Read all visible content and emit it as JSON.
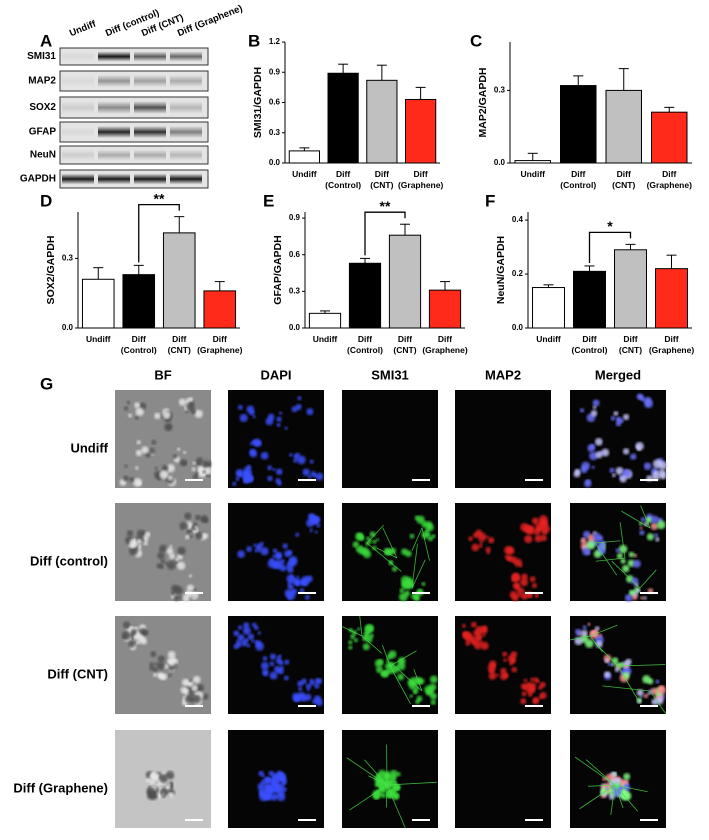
{
  "panel_labels": [
    "A",
    "B",
    "C",
    "D",
    "E",
    "F",
    "G"
  ],
  "blot": {
    "lanes": [
      "Undiff",
      "Diff (control)",
      "Diff (CNT)",
      "Diff (Graphene)"
    ],
    "rows": [
      "SMI31",
      "MAP2",
      "SOX2",
      "GFAP",
      "NeuN",
      "GAPDH"
    ]
  },
  "chart_data": [
    {
      "type": "bar",
      "ylabel": "SMI31/GAPDH",
      "categories": [
        "Undiff",
        "Diff (Control)",
        "Diff (CNT)",
        "Diff (Graphene)"
      ],
      "values": [
        0.12,
        0.89,
        0.82,
        0.63
      ],
      "errors": [
        0.03,
        0.09,
        0.15,
        0.12
      ],
      "colors": [
        "#ffffff",
        "#000000",
        "#c0c0c0",
        "#ff2a1a"
      ],
      "ylim": [
        0,
        1.2
      ],
      "yticks": [
        {
          "value": 0,
          "label": "0.0"
        },
        0.3,
        0.6,
        0.9,
        1.2
      ]
    },
    {
      "type": "bar",
      "ylabel": "MAP2/GAPDH",
      "categories": [
        "Undiff",
        "Diff (Control)",
        "Diff (CNT)",
        "Diff (Graphene)"
      ],
      "values": [
        0.01,
        0.32,
        0.3,
        0.21
      ],
      "errors": [
        0.03,
        0.04,
        0.09,
        0.02
      ],
      "colors": [
        "#ffffff",
        "#000000",
        "#c0c0c0",
        "#ff2a1a"
      ],
      "ylim": [
        0,
        0.5
      ],
      "yticks": [
        {
          "value": 0,
          "label": "0.0"
        },
        0.3
      ]
    },
    {
      "type": "bar",
      "ylabel": "SOX2/GAPDH",
      "categories": [
        "Undiff",
        "Diff (Control)",
        "Diff (CNT)",
        "Diff (Graphene)"
      ],
      "values": [
        0.21,
        0.23,
        0.41,
        0.16
      ],
      "errors": [
        0.05,
        0.04,
        0.07,
        0.04
      ],
      "colors": [
        "#ffffff",
        "#000000",
        "#c0c0c0",
        "#ff2a1a"
      ],
      "ylim": [
        0,
        0.5
      ],
      "yticks": [
        {
          "value": 0,
          "label": "0.0"
        },
        0.3
      ],
      "significance": [
        {
          "text": "**",
          "pair": [
            1,
            2
          ]
        }
      ]
    },
    {
      "type": "bar",
      "ylabel": "GFAP/GAPDH",
      "categories": [
        "Undiff",
        "Diff (Control)",
        "Diff (CNT)",
        "Diff (Graphene)"
      ],
      "values": [
        0.12,
        0.53,
        0.76,
        0.31
      ],
      "errors": [
        0.02,
        0.04,
        0.09,
        0.07
      ],
      "colors": [
        "#ffffff",
        "#000000",
        "#c0c0c0",
        "#ff2a1a"
      ],
      "ylim": [
        0,
        0.95
      ],
      "yticks": [
        {
          "value": 0,
          "label": "0.0"
        },
        0.3,
        0.6,
        0.9
      ],
      "significance": [
        {
          "text": "**",
          "pair": [
            1,
            2
          ]
        }
      ]
    },
    {
      "type": "bar",
      "ylabel": "NeuN/GAPDH",
      "categories": [
        "Undiff",
        "Diff (Control)",
        "Diff (CNT)",
        "Diff (Graphene)"
      ],
      "values": [
        0.15,
        0.21,
        0.29,
        0.22
      ],
      "errors": [
        0.01,
        0.02,
        0.02,
        0.05
      ],
      "colors": [
        "#ffffff",
        "#000000",
        "#c0c0c0",
        "#ff2a1a"
      ],
      "ylim": [
        0,
        0.43
      ],
      "yticks": [
        {
          "value": 0,
          "label": "0.0"
        },
        0.2,
        0.4
      ],
      "significance": [
        {
          "text": "*",
          "pair": [
            1,
            2
          ]
        }
      ]
    }
  ],
  "imaging": {
    "columns": [
      "BF",
      "DAPI",
      "SMI31",
      "MAP2",
      "Merged"
    ],
    "rows": [
      "Undiff",
      "Diff (control)",
      "Diff (CNT)",
      "Diff (Graphene)"
    ]
  }
}
